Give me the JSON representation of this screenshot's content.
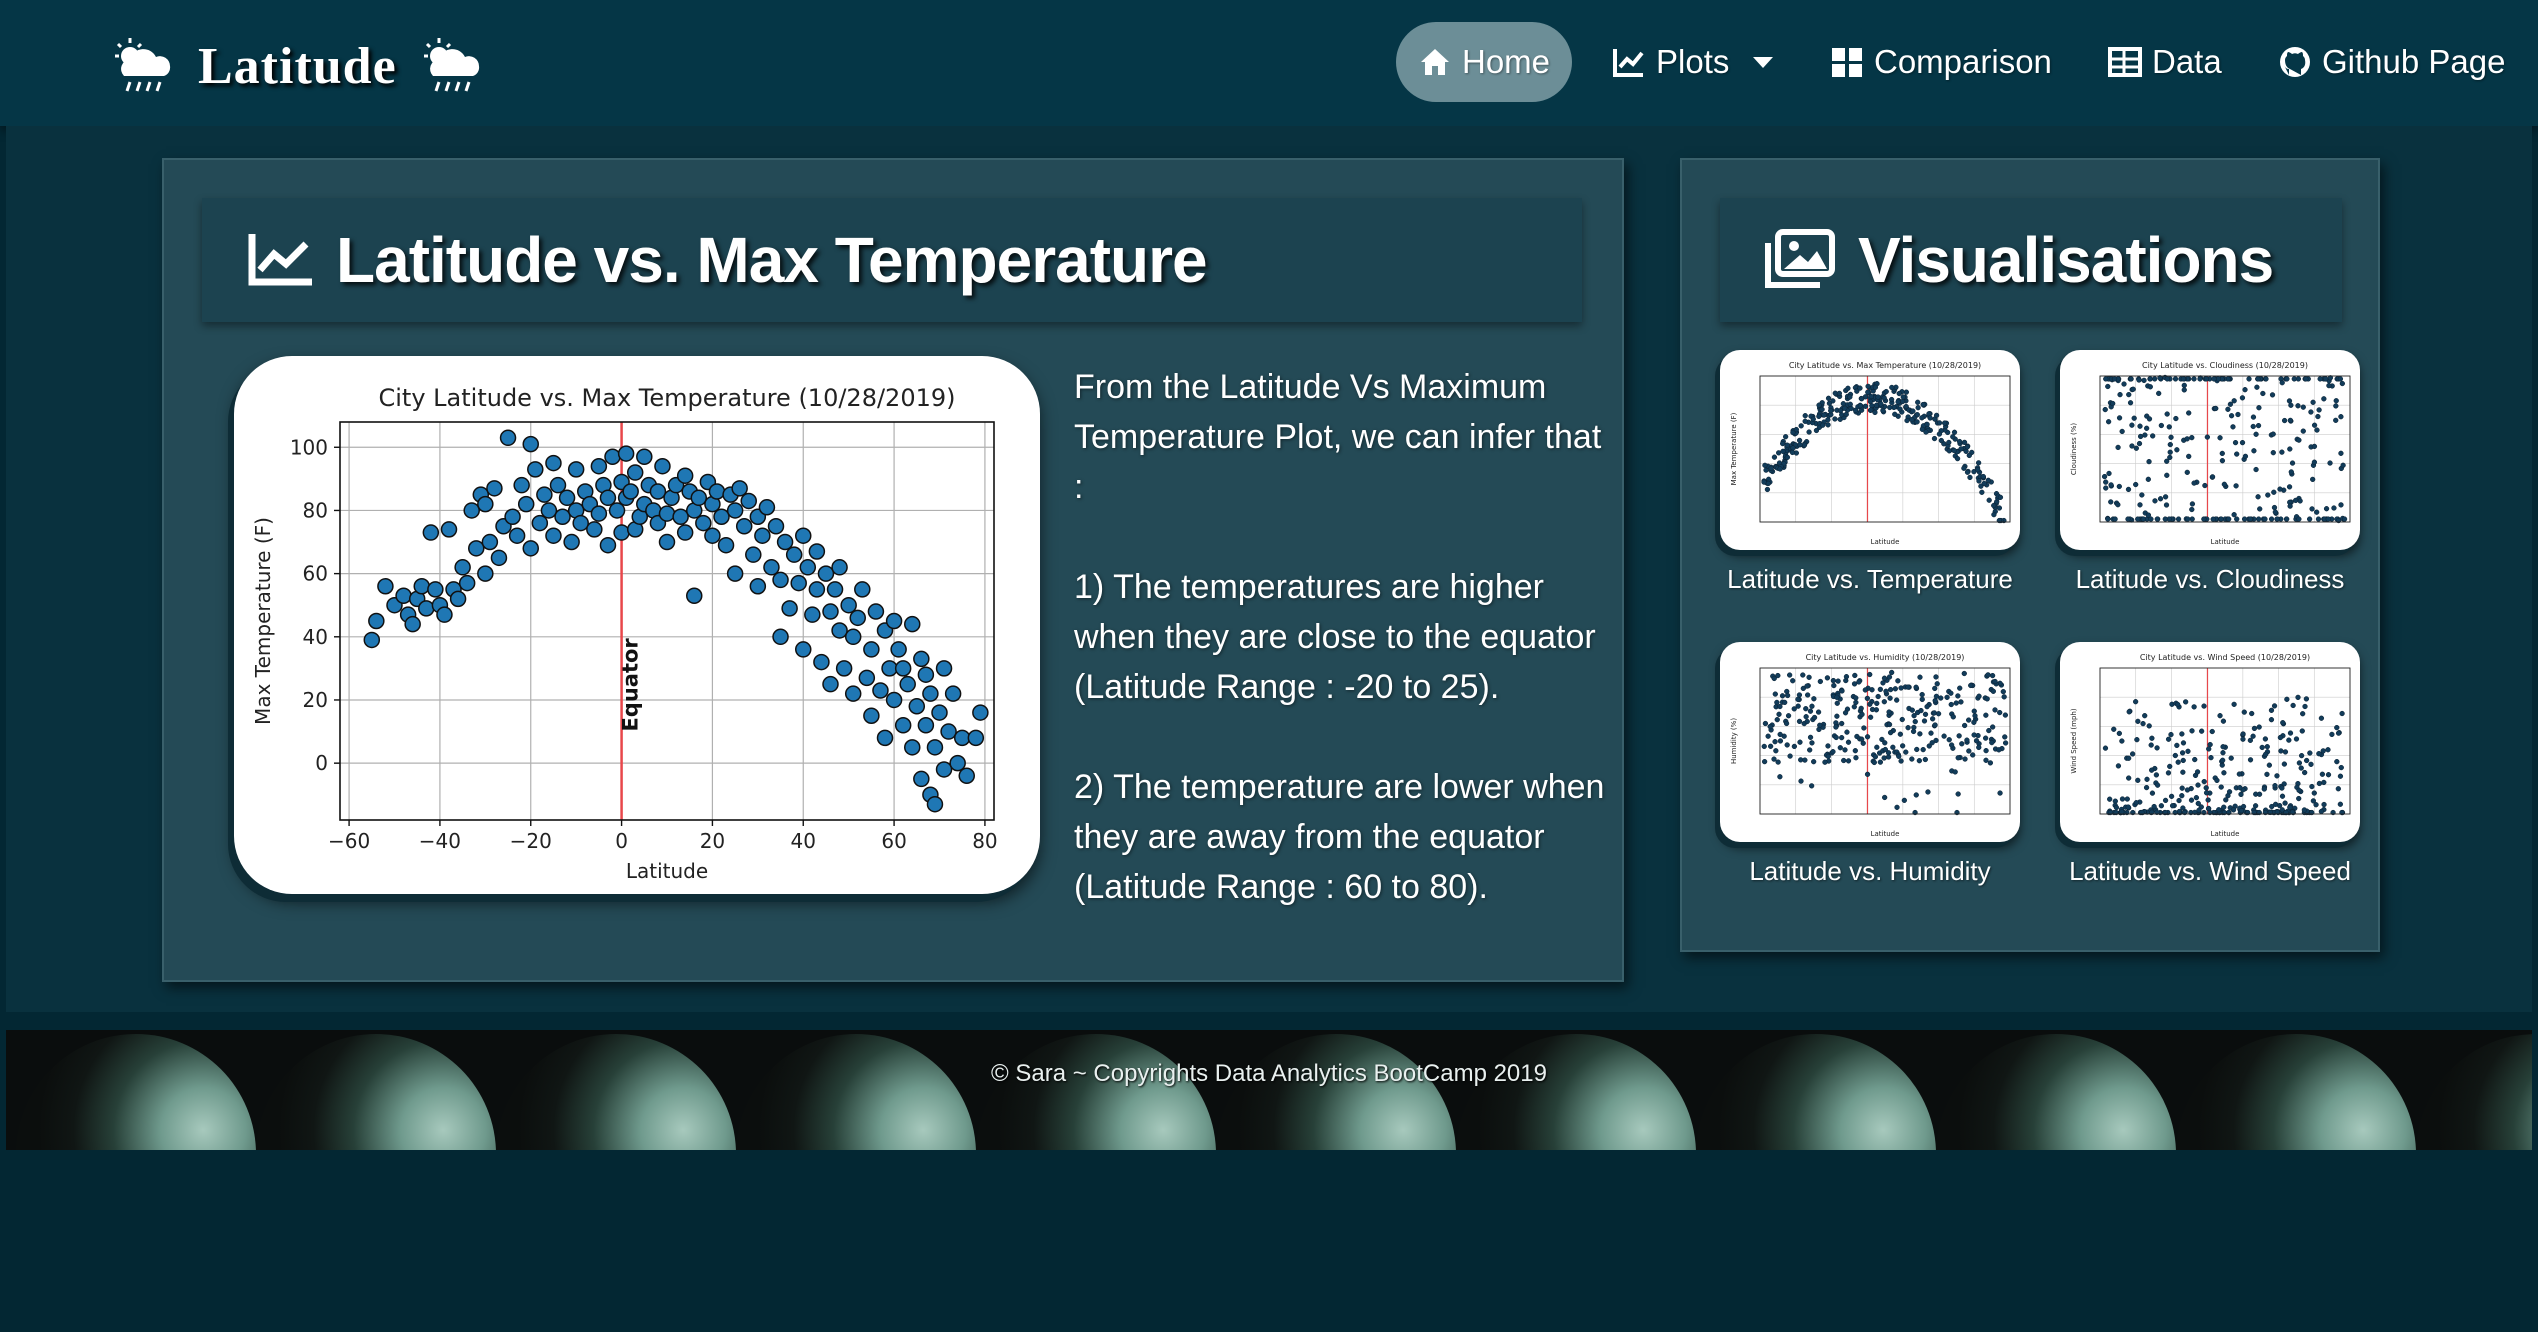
{
  "brand": {
    "title": "Latitude"
  },
  "nav": {
    "home": "Home",
    "plots": "Plots",
    "comparison": "Comparison",
    "data": "Data",
    "github": "Github Page"
  },
  "main": {
    "title": "Latitude vs. Max Temperature",
    "description": [
      "From the Latitude Vs Maximum Temperature Plot, we can infer that :",
      "1) The temperatures are higher when they are close to the equator (Latitude Range : -20 to 25).",
      "2) The temperature are lower when they are away from the equator (Latitude Range : 60 to 80)."
    ]
  },
  "sidebar": {
    "title": "Visualisations",
    "thumbnails": [
      {
        "label": "Latitude vs. Temperature",
        "chart_title": "City Latitude vs. Max Temperature (10/28/2019)",
        "ylabel": "Max Temperature (F)"
      },
      {
        "label": "Latitude vs. Cloudiness",
        "chart_title": "City Latitude vs. Cloudiness (10/28/2019)",
        "ylabel": "Cloudiness (%)"
      },
      {
        "label": "Latitude vs. Humidity",
        "chart_title": "City Latitude vs. Humidity (10/28/2019)",
        "ylabel": "Humidity (%)"
      },
      {
        "label": "Latitude vs. Wind Speed",
        "chart_title": "City Latitude vs. Wind Speed (10/28/2019)",
        "ylabel": "Wind Speed (mph)"
      }
    ]
  },
  "footer": {
    "text": "© Sara ~ Copyrights Data Analytics BootCamp 2019"
  },
  "colors": {
    "navbar": "#053646",
    "panel": "#244a56",
    "accent_active": "#6c8e97",
    "point": "#1f77b4",
    "equator": "#e8474b"
  },
  "icons": {
    "brand": "weather-storm-sun-icon",
    "home": "home-icon",
    "plots": "line-chart-icon",
    "comparison": "grid-icon",
    "data": "table-icon",
    "github": "github-icon",
    "title": "area-chart-icon",
    "visualisations": "images-icon"
  },
  "chart_data": {
    "type": "scatter",
    "title": "City Latitude vs. Max Temperature (10/28/2019)",
    "xlabel": "Latitude",
    "ylabel": "Max Temperature (F)",
    "xlim": [
      -62,
      82
    ],
    "ylim": [
      -18,
      108
    ],
    "xticks": [
      -60,
      -40,
      -20,
      0,
      20,
      40,
      60,
      80
    ],
    "yticks": [
      0,
      20,
      40,
      60,
      80,
      100
    ],
    "grid": true,
    "annotation": {
      "x": 0,
      "label": "Equator"
    },
    "series": [
      {
        "name": "",
        "points": [
          [
            -55,
            39
          ],
          [
            -54,
            45
          ],
          [
            -52,
            56
          ],
          [
            -50,
            50
          ],
          [
            -48,
            53
          ],
          [
            -47,
            47
          ],
          [
            -46,
            44
          ],
          [
            -45,
            52
          ],
          [
            -44,
            56
          ],
          [
            -43,
            49
          ],
          [
            -42,
            73
          ],
          [
            -41,
            55
          ],
          [
            -40,
            50
          ],
          [
            -39,
            47
          ],
          [
            -38,
            74
          ],
          [
            -37,
            55
          ],
          [
            -36,
            52
          ],
          [
            -35,
            62
          ],
          [
            -34,
            57
          ],
          [
            -33,
            80
          ],
          [
            -32,
            68
          ],
          [
            -31,
            85
          ],
          [
            -30,
            60
          ],
          [
            -30,
            82
          ],
          [
            -29,
            70
          ],
          [
            -28,
            87
          ],
          [
            -27,
            65
          ],
          [
            -26,
            75
          ],
          [
            -25,
            103
          ],
          [
            -24,
            78
          ],
          [
            -23,
            72
          ],
          [
            -22,
            88
          ],
          [
            -21,
            82
          ],
          [
            -20,
            101
          ],
          [
            -20,
            68
          ],
          [
            -19,
            93
          ],
          [
            -18,
            76
          ],
          [
            -17,
            85
          ],
          [
            -16,
            80
          ],
          [
            -15,
            95
          ],
          [
            -15,
            72
          ],
          [
            -14,
            88
          ],
          [
            -13,
            78
          ],
          [
            -12,
            84
          ],
          [
            -11,
            70
          ],
          [
            -10,
            93
          ],
          [
            -10,
            80
          ],
          [
            -9,
            76
          ],
          [
            -8,
            86
          ],
          [
            -7,
            82
          ],
          [
            -6,
            74
          ],
          [
            -5,
            94
          ],
          [
            -5,
            79
          ],
          [
            -4,
            88
          ],
          [
            -3,
            84
          ],
          [
            -3,
            69
          ],
          [
            -2,
            97
          ],
          [
            -1,
            80
          ],
          [
            0,
            89
          ],
          [
            0,
            73
          ],
          [
            1,
            98
          ],
          [
            1,
            84
          ],
          [
            2,
            86
          ],
          [
            3,
            74
          ],
          [
            3,
            92
          ],
          [
            4,
            78
          ],
          [
            5,
            97
          ],
          [
            5,
            82
          ],
          [
            6,
            88
          ],
          [
            7,
            80
          ],
          [
            8,
            76
          ],
          [
            8,
            86
          ],
          [
            9,
            94
          ],
          [
            10,
            79
          ],
          [
            10,
            70
          ],
          [
            11,
            84
          ],
          [
            12,
            88
          ],
          [
            13,
            78
          ],
          [
            14,
            91
          ],
          [
            14,
            73
          ],
          [
            15,
            86
          ],
          [
            16,
            80
          ],
          [
            16,
            53
          ],
          [
            17,
            84
          ],
          [
            18,
            76
          ],
          [
            19,
            89
          ],
          [
            20,
            82
          ],
          [
            20,
            72
          ],
          [
            21,
            86
          ],
          [
            22,
            78
          ],
          [
            23,
            69
          ],
          [
            24,
            85
          ],
          [
            25,
            80
          ],
          [
            25,
            60
          ],
          [
            26,
            87
          ],
          [
            27,
            75
          ],
          [
            28,
            83
          ],
          [
            29,
            66
          ],
          [
            30,
            78
          ],
          [
            30,
            56
          ],
          [
            31,
            72
          ],
          [
            32,
            81
          ],
          [
            33,
            62
          ],
          [
            34,
            75
          ],
          [
            35,
            58
          ],
          [
            35,
            40
          ],
          [
            36,
            70
          ],
          [
            37,
            49
          ],
          [
            38,
            66
          ],
          [
            39,
            57
          ],
          [
            40,
            72
          ],
          [
            40,
            36
          ],
          [
            41,
            62
          ],
          [
            42,
            47
          ],
          [
            43,
            55
          ],
          [
            43,
            67
          ],
          [
            44,
            32
          ],
          [
            45,
            60
          ],
          [
            46,
            48
          ],
          [
            46,
            25
          ],
          [
            47,
            55
          ],
          [
            48,
            42
          ],
          [
            48,
            62
          ],
          [
            49,
            30
          ],
          [
            50,
            50
          ],
          [
            51,
            22
          ],
          [
            51,
            40
          ],
          [
            52,
            46
          ],
          [
            53,
            55
          ],
          [
            54,
            27
          ],
          [
            55,
            36
          ],
          [
            55,
            15
          ],
          [
            56,
            48
          ],
          [
            57,
            23
          ],
          [
            58,
            42
          ],
          [
            58,
            8
          ],
          [
            59,
            30
          ],
          [
            60,
            20
          ],
          [
            60,
            45
          ],
          [
            61,
            36
          ],
          [
            62,
            12
          ],
          [
            62,
            30
          ],
          [
            63,
            25
          ],
          [
            64,
            44
          ],
          [
            64,
            5
          ],
          [
            65,
            18
          ],
          [
            66,
            33
          ],
          [
            66,
            -5
          ],
          [
            67,
            12
          ],
          [
            67,
            28
          ],
          [
            68,
            -10
          ],
          [
            68,
            22
          ],
          [
            69,
            -13
          ],
          [
            69,
            5
          ],
          [
            70,
            16
          ],
          [
            71,
            30
          ],
          [
            71,
            -2
          ],
          [
            72,
            10
          ],
          [
            73,
            22
          ],
          [
            74,
            0
          ],
          [
            75,
            8
          ],
          [
            76,
            -4
          ],
          [
            78,
            8
          ],
          [
            79,
            16
          ]
        ]
      }
    ]
  }
}
